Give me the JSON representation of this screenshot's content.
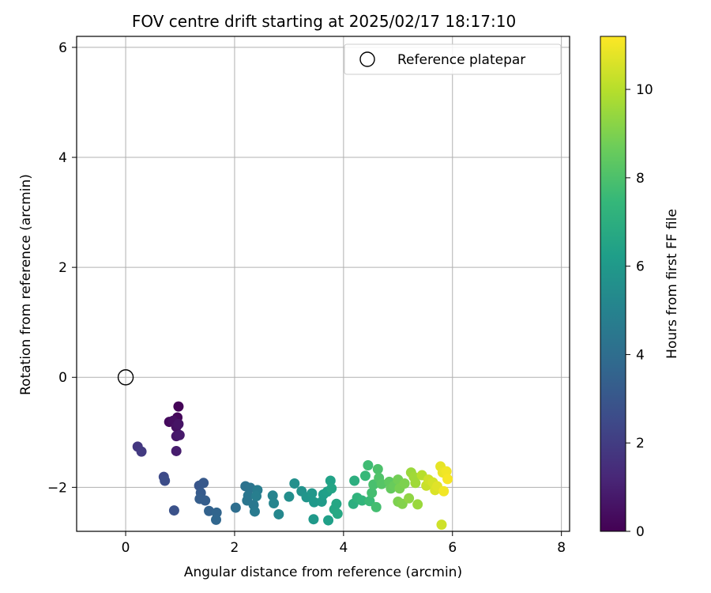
{
  "chart_data": {
    "type": "scatter",
    "title": "FOV centre drift starting at 2025/02/17 18:17:10",
    "xlabel": "Angular distance from reference (arcmin)",
    "ylabel": "Rotation from reference (arcmin)",
    "xlim": [
      -0.9,
      8.15
    ],
    "ylim": [
      -2.8,
      6.2
    ],
    "xticks": [
      0,
      2,
      4,
      6,
      8
    ],
    "yticks": [
      -2,
      0,
      2,
      4,
      6
    ],
    "grid": true,
    "legend": {
      "placement": "top-right",
      "entries": [
        "Reference platepar"
      ]
    },
    "reference_point": {
      "x": 0,
      "y": 0,
      "label": "Reference platepar",
      "marker": "open-circle"
    },
    "colorbar": {
      "label": "Hours from first FF file",
      "colormap": "viridis",
      "range": [
        0,
        11.2
      ],
      "ticks": [
        0,
        2,
        4,
        6,
        8,
        10
      ]
    },
    "series": [
      {
        "points": [
          {
            "x": 0.97,
            "y": -0.53,
            "c": 0.1
          },
          {
            "x": 0.95,
            "y": -0.73,
            "c": 0.2
          },
          {
            "x": 0.8,
            "y": -0.81,
            "c": 0.3
          },
          {
            "x": 0.87,
            "y": -0.79,
            "c": 0.4
          },
          {
            "x": 0.93,
            "y": -0.9,
            "c": 0.5
          },
          {
            "x": 0.97,
            "y": -0.85,
            "c": 0.6
          },
          {
            "x": 0.93,
            "y": -1.07,
            "c": 0.7
          },
          {
            "x": 0.99,
            "y": -1.05,
            "c": 0.8
          },
          {
            "x": 0.93,
            "y": -1.34,
            "c": 0.9
          },
          {
            "x": 0.22,
            "y": -1.26,
            "c": 1.8
          },
          {
            "x": 0.29,
            "y": -1.35,
            "c": 1.9
          },
          {
            "x": 0.7,
            "y": -1.81,
            "c": 2.5
          },
          {
            "x": 0.72,
            "y": -1.88,
            "c": 2.6
          },
          {
            "x": 0.89,
            "y": -2.42,
            "c": 2.8
          },
          {
            "x": 1.35,
            "y": -1.97,
            "c": 3.0
          },
          {
            "x": 1.43,
            "y": -1.92,
            "c": 3.1
          },
          {
            "x": 1.38,
            "y": -2.1,
            "c": 3.2
          },
          {
            "x": 1.36,
            "y": -2.21,
            "c": 3.3
          },
          {
            "x": 1.46,
            "y": -2.24,
            "c": 3.3
          },
          {
            "x": 1.53,
            "y": -2.43,
            "c": 3.5
          },
          {
            "x": 1.67,
            "y": -2.46,
            "c": 3.6
          },
          {
            "x": 1.66,
            "y": -2.59,
            "c": 3.7
          },
          {
            "x": 2.02,
            "y": -2.37,
            "c": 4.0
          },
          {
            "x": 2.2,
            "y": -1.98,
            "c": 4.2
          },
          {
            "x": 2.29,
            "y": -2.01,
            "c": 4.3
          },
          {
            "x": 2.25,
            "y": -2.15,
            "c": 4.4
          },
          {
            "x": 2.23,
            "y": -2.24,
            "c": 4.4
          },
          {
            "x": 2.35,
            "y": -2.32,
            "c": 4.5
          },
          {
            "x": 2.37,
            "y": -2.44,
            "c": 4.6
          },
          {
            "x": 2.42,
            "y": -2.05,
            "c": 4.7
          },
          {
            "x": 2.4,
            "y": -2.16,
            "c": 4.8
          },
          {
            "x": 2.7,
            "y": -2.15,
            "c": 5.0
          },
          {
            "x": 2.72,
            "y": -2.29,
            "c": 5.1
          },
          {
            "x": 2.81,
            "y": -2.49,
            "c": 5.2
          },
          {
            "x": 3.0,
            "y": -2.17,
            "c": 5.5
          },
          {
            "x": 3.1,
            "y": -1.93,
            "c": 5.6
          },
          {
            "x": 3.23,
            "y": -2.07,
            "c": 5.7
          },
          {
            "x": 3.32,
            "y": -2.18,
            "c": 5.8
          },
          {
            "x": 3.42,
            "y": -2.11,
            "c": 5.9
          },
          {
            "x": 3.46,
            "y": -2.27,
            "c": 6.0
          },
          {
            "x": 3.45,
            "y": -2.58,
            "c": 6.0
          },
          {
            "x": 3.6,
            "y": -2.26,
            "c": 6.1
          },
          {
            "x": 3.63,
            "y": -2.13,
            "c": 6.2
          },
          {
            "x": 3.7,
            "y": -2.08,
            "c": 6.3
          },
          {
            "x": 3.72,
            "y": -2.6,
            "c": 6.3
          },
          {
            "x": 3.76,
            "y": -1.88,
            "c": 6.4
          },
          {
            "x": 3.78,
            "y": -2.02,
            "c": 6.5
          },
          {
            "x": 3.83,
            "y": -2.4,
            "c": 6.6
          },
          {
            "x": 3.87,
            "y": -2.3,
            "c": 6.6
          },
          {
            "x": 3.89,
            "y": -2.48,
            "c": 6.7
          },
          {
            "x": 4.2,
            "y": -1.88,
            "c": 7.0
          },
          {
            "x": 4.18,
            "y": -2.3,
            "c": 7.0
          },
          {
            "x": 4.25,
            "y": -2.19,
            "c": 7.2
          },
          {
            "x": 4.34,
            "y": -2.24,
            "c": 7.3
          },
          {
            "x": 4.4,
            "y": -1.79,
            "c": 7.5
          },
          {
            "x": 4.45,
            "y": -1.6,
            "c": 7.7
          },
          {
            "x": 4.48,
            "y": -2.25,
            "c": 7.6
          },
          {
            "x": 4.52,
            "y": -2.1,
            "c": 7.8
          },
          {
            "x": 4.55,
            "y": -1.95,
            "c": 7.9
          },
          {
            "x": 4.6,
            "y": -2.36,
            "c": 7.8
          },
          {
            "x": 4.63,
            "y": -1.67,
            "c": 8.0
          },
          {
            "x": 4.65,
            "y": -1.83,
            "c": 8.1
          },
          {
            "x": 4.7,
            "y": -1.94,
            "c": 8.2
          },
          {
            "x": 4.84,
            "y": -1.9,
            "c": 8.4
          },
          {
            "x": 4.87,
            "y": -2.02,
            "c": 8.5
          },
          {
            "x": 4.93,
            "y": -1.97,
            "c": 8.6
          },
          {
            "x": 5.0,
            "y": -1.86,
            "c": 8.8
          },
          {
            "x": 5.03,
            "y": -2.02,
            "c": 8.9
          },
          {
            "x": 5.0,
            "y": -2.26,
            "c": 9.0
          },
          {
            "x": 5.08,
            "y": -2.3,
            "c": 9.1
          },
          {
            "x": 5.12,
            "y": -1.93,
            "c": 9.0
          },
          {
            "x": 5.2,
            "y": -2.2,
            "c": 9.3
          },
          {
            "x": 5.24,
            "y": -1.73,
            "c": 9.5
          },
          {
            "x": 5.29,
            "y": -1.81,
            "c": 9.6
          },
          {
            "x": 5.32,
            "y": -1.92,
            "c": 9.6
          },
          {
            "x": 5.36,
            "y": -2.31,
            "c": 9.5
          },
          {
            "x": 5.44,
            "y": -1.78,
            "c": 10.0
          },
          {
            "x": 5.52,
            "y": -1.97,
            "c": 10.3
          },
          {
            "x": 5.56,
            "y": -1.86,
            "c": 10.4
          },
          {
            "x": 5.64,
            "y": -1.91,
            "c": 10.5
          },
          {
            "x": 5.68,
            "y": -2.05,
            "c": 10.6
          },
          {
            "x": 5.72,
            "y": -1.98,
            "c": 10.7
          },
          {
            "x": 5.78,
            "y": -1.62,
            "c": 10.8
          },
          {
            "x": 5.82,
            "y": -1.73,
            "c": 10.9
          },
          {
            "x": 5.84,
            "y": -2.07,
            "c": 11.0
          },
          {
            "x": 5.89,
            "y": -1.71,
            "c": 11.0
          },
          {
            "x": 5.91,
            "y": -1.85,
            "c": 11.1
          },
          {
            "x": 5.8,
            "y": -2.68,
            "c": 10.4
          }
        ]
      }
    ]
  }
}
